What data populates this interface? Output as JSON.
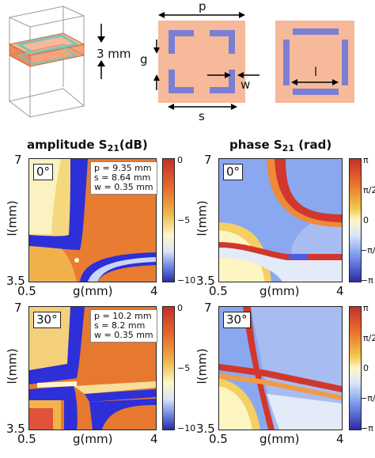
{
  "schematic": {
    "thickness_label": "3 mm",
    "p_label": "p",
    "g_label": "g",
    "w_label": "w",
    "s_label": "s",
    "l_label": "l",
    "colors": {
      "substrate": "#f6b99a",
      "slot": "#7b7fd4",
      "slab": "#f08a5d"
    }
  },
  "panels": {
    "amp_title_main": "amplitude S",
    "amp_title_sub": "21",
    "amp_title_unit": "(dB)",
    "phase_title_main": "phase S",
    "phase_title_sub": "21",
    "phase_title_unit": " (rad)",
    "angle_top": "0°",
    "angle_bottom": "30°",
    "xlabel": "g(mm)",
    "ylabel": "l(mm)",
    "x_min": "0.5",
    "x_max": "4",
    "y_max": "7",
    "y_min": "3.5",
    "inset_top": {
      "p": "p = 9.35 mm",
      "s": "s = 8.64 mm",
      "w": "w = 0.35 mm"
    },
    "inset_bottom": {
      "p": "p = 10.2 mm",
      "s": "s = 8.2 mm",
      "w": "w = 0.35 mm"
    },
    "amp_ticks": [
      "0",
      "−5",
      "−10"
    ],
    "phase_ticks": [
      "π",
      "π/2",
      "0",
      "−π/2",
      "−π"
    ]
  },
  "chart_data": [
    {
      "type": "heatmap",
      "title": "amplitude S21(dB)",
      "angle": "0°",
      "xlabel": "g(mm)",
      "ylabel": "l(mm)",
      "xlim": [
        0.5,
        4
      ],
      "ylim": [
        3.5,
        7
      ],
      "colorbar_range": [
        -10,
        0
      ]
    },
    {
      "type": "heatmap",
      "title": "phase S21 (rad)",
      "angle": "0°",
      "xlabel": "g(mm)",
      "ylabel": "l(mm)",
      "xlim": [
        0.5,
        4
      ],
      "ylim": [
        3.5,
        7
      ],
      "colorbar_range": [
        "−π",
        "π"
      ]
    },
    {
      "type": "heatmap",
      "title": "amplitude S21(dB)",
      "angle": "30°",
      "xlabel": "g(mm)",
      "ylabel": "l(mm)",
      "xlim": [
        0.5,
        4
      ],
      "ylim": [
        3.5,
        7
      ],
      "colorbar_range": [
        -10,
        0
      ]
    },
    {
      "type": "heatmap",
      "title": "phase S21 (rad)",
      "angle": "30°",
      "xlabel": "g(mm)",
      "ylabel": "l(mm)",
      "xlim": [
        0.5,
        4
      ],
      "ylim": [
        3.5,
        7
      ],
      "colorbar_range": [
        "−π",
        "π"
      ]
    }
  ]
}
